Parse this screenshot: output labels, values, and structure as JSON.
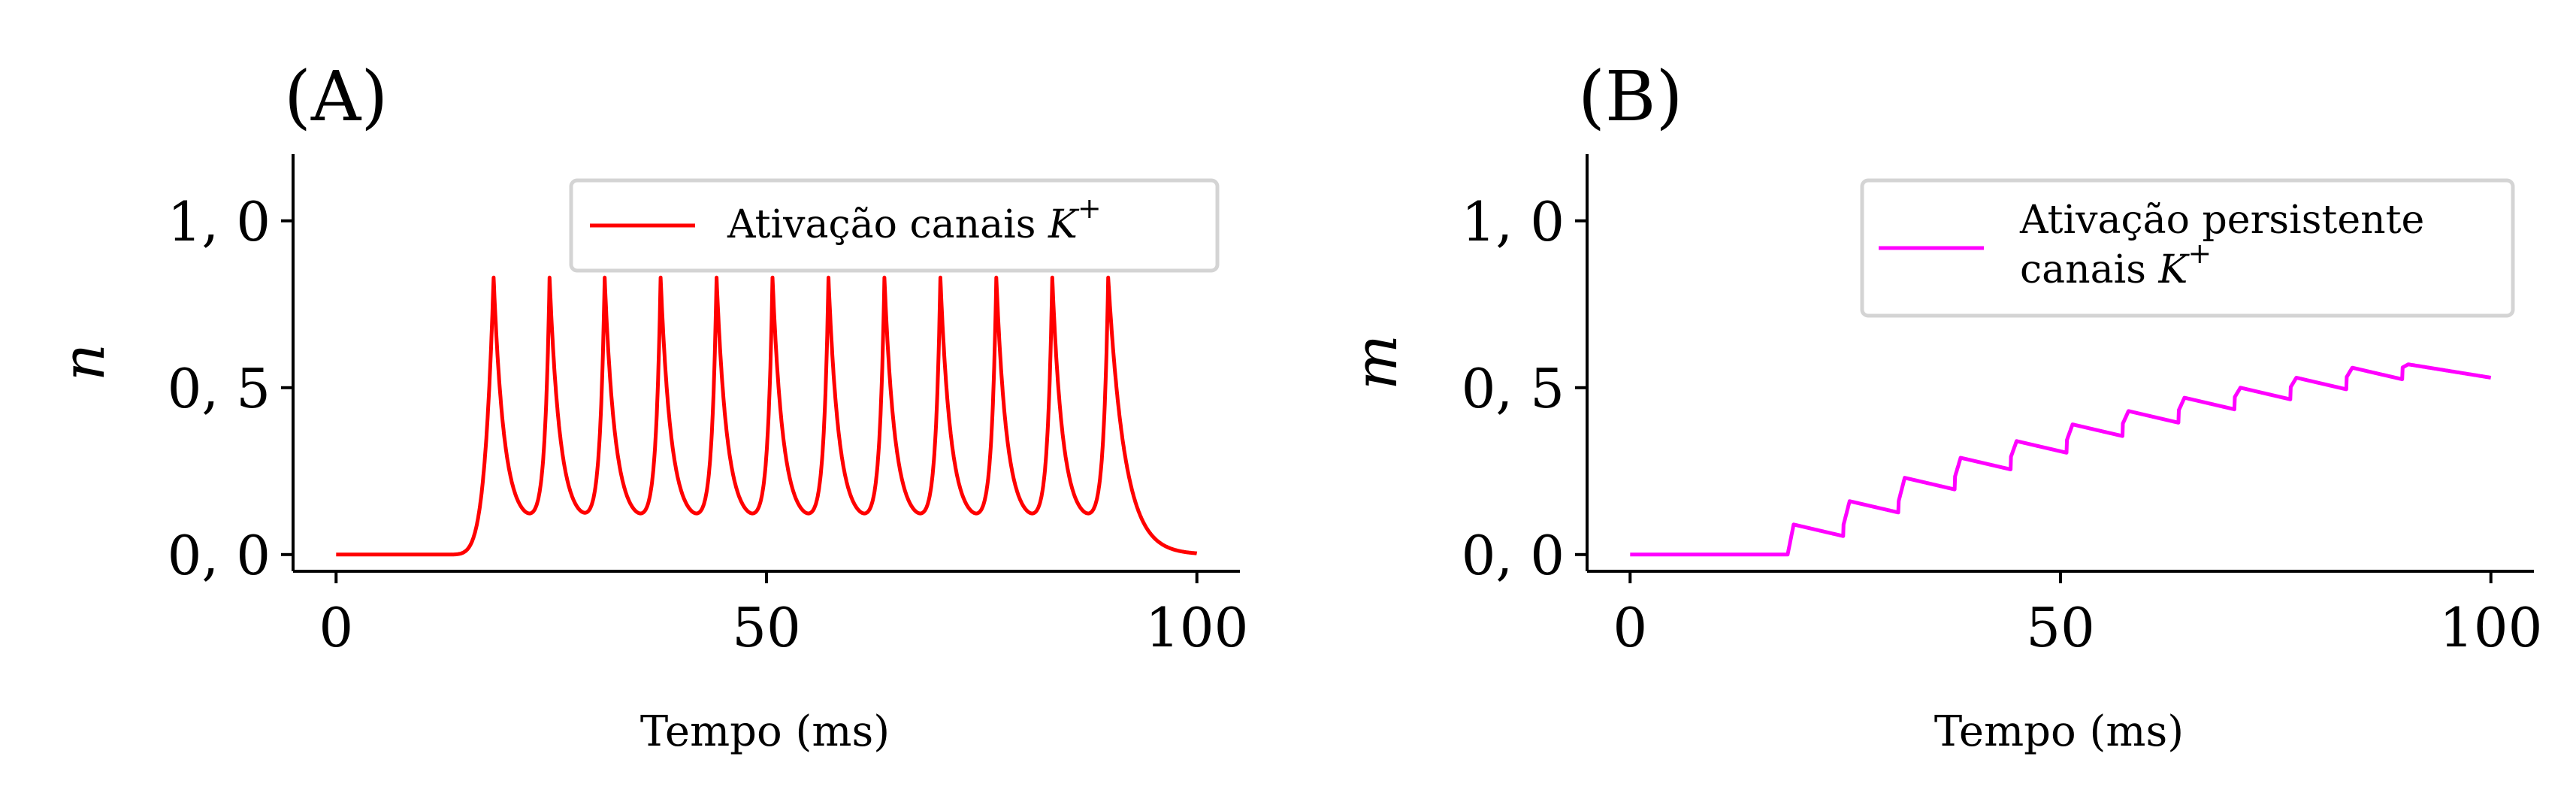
{
  "chart_data": [
    {
      "panel_label": "(A)",
      "type": "line",
      "xlabel": "Tempo (ms)",
      "ylabel": "n",
      "xlim": [
        -5,
        105
      ],
      "ylim": [
        -0.05,
        1.2
      ],
      "xticks": [
        0,
        50,
        100
      ],
      "xtick_labels": [
        "0",
        "50",
        "100"
      ],
      "yticks": [
        0.0,
        0.5,
        1.0
      ],
      "ytick_labels": [
        "0, 0",
        "0, 5",
        "1, 0"
      ],
      "grid": false,
      "legend_position": "upper right",
      "series": [
        {
          "name_text": "Ativação canais ",
          "name_math": "K",
          "name_sup": "+",
          "color": "#ff0000",
          "baseline": 0.0,
          "onset_ms": 12,
          "first_spike_ms": 18.3,
          "spike_times_ms": [
            18.3,
            24.8,
            31.2,
            37.7,
            44.2,
            50.7,
            57.2,
            63.7,
            70.2,
            76.7,
            83.2,
            89.7
          ],
          "spike_peak": 0.83,
          "trough": 0.09,
          "end_value": 0.0,
          "x_end": 100
        }
      ]
    },
    {
      "panel_label": "(B)",
      "type": "line",
      "xlabel": "Tempo (ms)",
      "ylabel": "m",
      "xlim": [
        -5,
        105
      ],
      "ylim": [
        -0.05,
        1.2
      ],
      "xticks": [
        0,
        50,
        100
      ],
      "xtick_labels": [
        "0",
        "50",
        "100"
      ],
      "yticks": [
        0.0,
        0.5,
        1.0
      ],
      "ytick_labels": [
        "0, 0",
        "0, 5",
        "1, 0"
      ],
      "grid": false,
      "legend_position": "upper right",
      "series": [
        {
          "name_line1": "Ativação persistente",
          "name_line2_text": "canais ",
          "name_math": "K",
          "name_sup": "+",
          "color": "#ff00ff",
          "baseline": 0.0,
          "step_times_ms": [
            18.3,
            24.8,
            31.2,
            37.7,
            44.2,
            50.7,
            57.2,
            63.7,
            70.2,
            76.7,
            83.2,
            89.7
          ],
          "levels_after_step": [
            0.09,
            0.16,
            0.23,
            0.29,
            0.34,
            0.39,
            0.43,
            0.47,
            0.5,
            0.53,
            0.56,
            0.57
          ],
          "end_value": 0.53,
          "x_end": 100
        }
      ]
    }
  ]
}
